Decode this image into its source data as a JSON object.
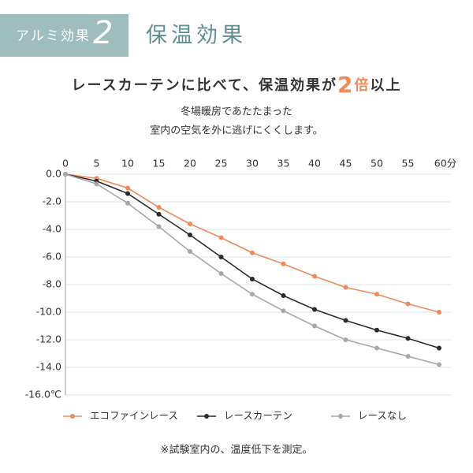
{
  "header": {
    "badge": "アルミ効果",
    "badge_number": "2",
    "title": "保温効果",
    "headline": [
      "レースカーテンに比べて、保温効果が",
      "2",
      "倍",
      "以上"
    ],
    "subtitle": [
      "冬場暖房であたたまった",
      "室内の空気を外に逃げにくくします。"
    ],
    "footnote": "※試験室内の、温度低下を測定。"
  },
  "chart_data": {
    "type": "line",
    "x": [
      0,
      5,
      10,
      15,
      20,
      25,
      30,
      35,
      40,
      45,
      50,
      55,
      60
    ],
    "xlim": [
      0,
      60
    ],
    "xticks": [
      0,
      5,
      10,
      15,
      20,
      25,
      30,
      35,
      40,
      45,
      50,
      55,
      {
        "value": 60,
        "label": "60分"
      }
    ],
    "ylim": [
      -16,
      0
    ],
    "yticks": [
      {
        "value": 0,
        "label": "0.0"
      },
      {
        "value": -2,
        "label": "-2.0"
      },
      {
        "value": -4,
        "label": "-4.0"
      },
      {
        "value": -6,
        "label": "-6.0"
      },
      {
        "value": -8,
        "label": "-8.0"
      },
      {
        "value": -10,
        "label": "-10.0"
      },
      {
        "value": -12,
        "label": "-12.0"
      },
      {
        "value": -14,
        "label": "-14.0"
      },
      {
        "value": -16,
        "label": "-16.0℃"
      }
    ],
    "grid": true,
    "series": [
      {
        "name": "エコファインレース",
        "color": "#ef8a5c",
        "values": [
          0,
          -0.3,
          -1.0,
          -2.4,
          -3.6,
          -4.6,
          -5.7,
          -6.5,
          -7.4,
          -8.2,
          -8.7,
          -9.4,
          -10.0
        ]
      },
      {
        "name": "レースカーテン",
        "color": "#2b2b2b",
        "values": [
          0,
          -0.5,
          -1.4,
          -2.9,
          -4.4,
          -6.0,
          -7.6,
          -8.8,
          -9.8,
          -10.6,
          -11.3,
          -11.9,
          -12.6
        ]
      },
      {
        "name": "レースなし",
        "color": "#a8a8a8",
        "values": [
          0,
          -0.7,
          -2.1,
          -3.8,
          -5.6,
          -7.2,
          -8.7,
          -9.9,
          -11.0,
          -12.0,
          -12.6,
          -13.2,
          -13.8
        ]
      }
    ]
  }
}
